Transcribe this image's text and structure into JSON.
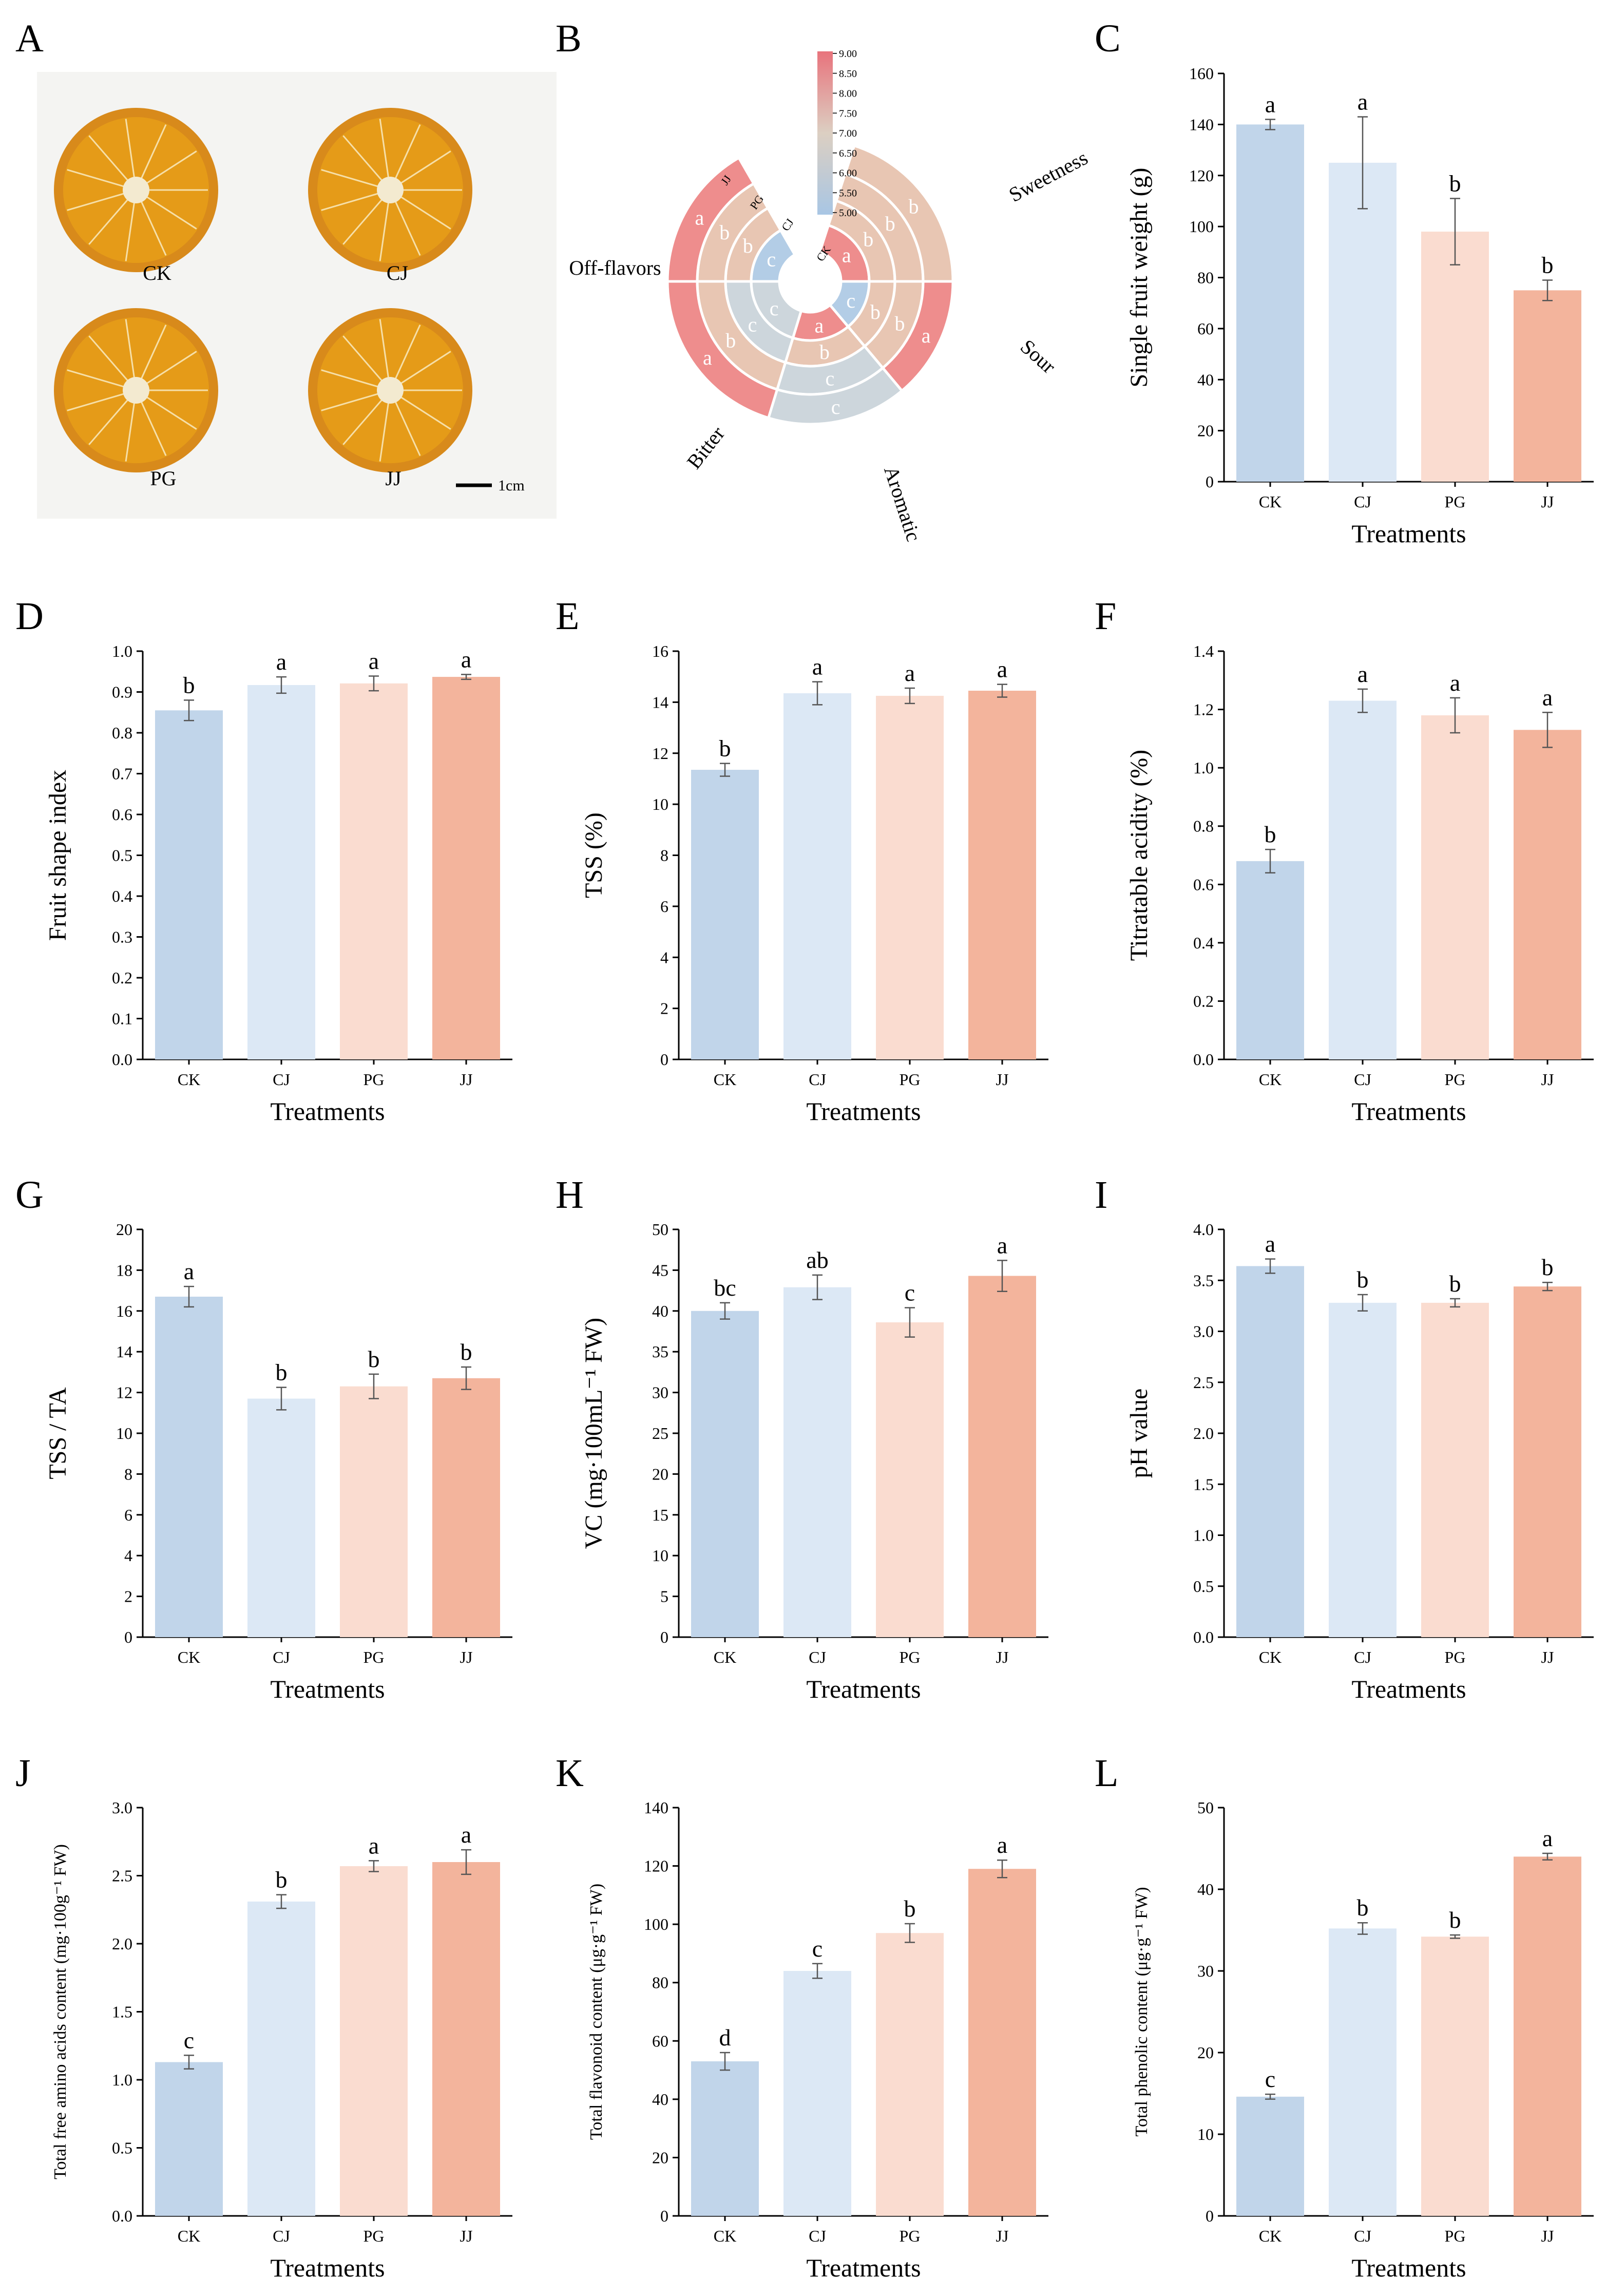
{
  "panel_letters": [
    "A",
    "B",
    "C",
    "D",
    "E",
    "F",
    "G",
    "H",
    "I",
    "J",
    "K",
    "L"
  ],
  "colors": {
    "CK": "#c1d5ea",
    "CJ": "#dce8f5",
    "PG": "#fadcd0",
    "JJ": "#f3b49c",
    "axis": "#000000",
    "errorbar": "#555555",
    "photo_bg": "#f4f4f2",
    "fruit_rind": "#d88a1b",
    "fruit_flesh": "#e59b18",
    "fruit_center": "#f3ead0",
    "radar_a": "#ee8d8d",
    "radar_b": "#e8c6b3",
    "radar_bc": "#d8ccb2",
    "radar_c": "#cdd6dc",
    "radar_c_blue": "#b3cde6",
    "colorbar_top": "#e8737c",
    "colorbar_mid": "#dccfc2",
    "colorbar_bottom": "#a8c6e4"
  },
  "panelA": {
    "labels": [
      "CK",
      "CJ",
      "PG",
      "JJ"
    ],
    "scale_label": "1cm"
  },
  "panelB": {
    "chart_data": {
      "type": "radial-heatmap",
      "rings_inner_to_outer": [
        "CK",
        "CJ",
        "PG",
        "JJ"
      ],
      "attributes": [
        "Sweetness",
        "Sour",
        "Aromatic",
        "Bitter",
        "Off-flavors"
      ],
      "letters": {
        "Sweetness": [
          "a",
          "b",
          "b",
          "b"
        ],
        "Sour": [
          "c",
          "b",
          "b",
          "a"
        ],
        "Aromatic": [
          "a",
          "b",
          "c",
          "c"
        ],
        "Bitter": [
          "c",
          "c",
          "b",
          "a"
        ],
        "Off-flavors": [
          "c",
          "b",
          "b",
          "a"
        ]
      },
      "colorbar_ticks": [
        "9.00",
        "8.50",
        "8.00",
        "7.50",
        "7.00",
        "6.50",
        "6.00",
        "5.50",
        "5.00"
      ]
    }
  },
  "chart_data": [
    {
      "panel": "C",
      "type": "bar",
      "categories": [
        "CK",
        "CJ",
        "PG",
        "JJ"
      ],
      "values": [
        140,
        125,
        98,
        75
      ],
      "errors": [
        2,
        18,
        13,
        4
      ],
      "letters": [
        "a",
        "a",
        "b",
        "b"
      ],
      "ylabel": "Single fruit weight (g)",
      "xlabel": "Treatments",
      "ylim": [
        0,
        160
      ],
      "ticks": [
        "0",
        "20",
        "40",
        "60",
        "80",
        "100",
        "120",
        "140",
        "160"
      ]
    },
    {
      "panel": "D",
      "type": "bar",
      "categories": [
        "CK",
        "CJ",
        "PG",
        "JJ"
      ],
      "values": [
        0.855,
        0.917,
        0.921,
        0.937
      ],
      "errors": [
        0.025,
        0.02,
        0.018,
        0.006
      ],
      "letters": [
        "b",
        "a",
        "a",
        "a"
      ],
      "ylabel": "Fruit shape index",
      "xlabel": "Treatments",
      "ylim": [
        0,
        1.0
      ],
      "ticks": [
        "0.0",
        "0.1",
        "0.2",
        "0.3",
        "0.4",
        "0.5",
        "0.6",
        "0.7",
        "0.8",
        "0.9",
        "1.0"
      ]
    },
    {
      "panel": "E",
      "type": "bar",
      "categories": [
        "CK",
        "CJ",
        "PG",
        "JJ"
      ],
      "values": [
        11.35,
        14.35,
        14.25,
        14.45
      ],
      "errors": [
        0.25,
        0.45,
        0.3,
        0.25
      ],
      "letters": [
        "b",
        "a",
        "a",
        "a"
      ],
      "ylabel": "TSS (%)",
      "xlabel": "Treatments",
      "ylim": [
        0,
        16
      ],
      "ticks": [
        "0",
        "2",
        "4",
        "6",
        "8",
        "10",
        "12",
        "14",
        "16"
      ]
    },
    {
      "panel": "F",
      "type": "bar",
      "categories": [
        "CK",
        "CJ",
        "PG",
        "JJ"
      ],
      "values": [
        0.68,
        1.23,
        1.18,
        1.13
      ],
      "errors": [
        0.04,
        0.04,
        0.06,
        0.06
      ],
      "letters": [
        "b",
        "a",
        "a",
        "a"
      ],
      "ylabel": "Titratable acidity (%)",
      "xlabel": "Treatments",
      "ylim": [
        0,
        1.4
      ],
      "ticks": [
        "0.0",
        "0.2",
        "0.4",
        "0.6",
        "0.8",
        "1.0",
        "1.2",
        "1.4"
      ]
    },
    {
      "panel": "G",
      "type": "bar",
      "categories": [
        "CK",
        "CJ",
        "PG",
        "JJ"
      ],
      "values": [
        16.7,
        11.7,
        12.3,
        12.7
      ],
      "errors": [
        0.5,
        0.55,
        0.6,
        0.55
      ],
      "letters": [
        "a",
        "b",
        "b",
        "b"
      ],
      "ylabel": "TSS / TA",
      "xlabel": "Treatments",
      "ylim": [
        0,
        20
      ],
      "ticks": [
        "0",
        "2",
        "4",
        "6",
        "8",
        "10",
        "12",
        "14",
        "16",
        "18",
        "20"
      ]
    },
    {
      "panel": "H",
      "type": "bar",
      "categories": [
        "CK",
        "CJ",
        "PG",
        "JJ"
      ],
      "values": [
        40,
        42.9,
        38.6,
        44.3
      ],
      "errors": [
        1.0,
        1.5,
        1.8,
        1.9
      ],
      "letters": [
        "bc",
        "ab",
        "c",
        "a"
      ],
      "ylabel": "VC (mg·100mL⁻¹ FW)",
      "xlabel": "Treatments",
      "ylim": [
        0,
        50
      ],
      "ticks": [
        "0",
        "5",
        "10",
        "15",
        "20",
        "25",
        "30",
        "35",
        "40",
        "45",
        "50"
      ]
    },
    {
      "panel": "I",
      "type": "bar",
      "categories": [
        "CK",
        "CJ",
        "PG",
        "JJ"
      ],
      "values": [
        3.64,
        3.28,
        3.28,
        3.44
      ],
      "errors": [
        0.07,
        0.08,
        0.04,
        0.04
      ],
      "letters": [
        "a",
        "b",
        "b",
        "b"
      ],
      "ylabel": "pH value",
      "xlabel": "Treatments",
      "ylim": [
        0,
        4.0
      ],
      "ticks": [
        "0.0",
        "0.5",
        "1.0",
        "1.5",
        "2.0",
        "2.5",
        "3.0",
        "3.5",
        "4.0"
      ]
    },
    {
      "panel": "J",
      "type": "bar",
      "categories": [
        "CK",
        "CJ",
        "PG",
        "JJ"
      ],
      "values": [
        1.13,
        2.31,
        2.57,
        2.6
      ],
      "errors": [
        0.05,
        0.05,
        0.04,
        0.09
      ],
      "letters": [
        "c",
        "b",
        "a",
        "a"
      ],
      "ylabel": "Total free amino acids content (mg·100g⁻¹ FW)",
      "xlabel": "Treatments",
      "ylim": [
        0,
        3.0
      ],
      "ticks": [
        "0.0",
        "0.5",
        "1.0",
        "1.5",
        "2.0",
        "2.5",
        "3.0"
      ]
    },
    {
      "panel": "K",
      "type": "bar",
      "categories": [
        "CK",
        "CJ",
        "PG",
        "JJ"
      ],
      "values": [
        53,
        84,
        97,
        119
      ],
      "errors": [
        3,
        2.5,
        3.2,
        3
      ],
      "letters": [
        "d",
        "c",
        "b",
        "a"
      ],
      "ylabel": "Total flavonoid content (μg·g⁻¹ FW)",
      "xlabel": "Treatments",
      "ylim": [
        0,
        140
      ],
      "ticks": [
        "0",
        "20",
        "40",
        "60",
        "80",
        "100",
        "120",
        "140"
      ]
    },
    {
      "panel": "L",
      "type": "bar",
      "categories": [
        "CK",
        "CJ",
        "PG",
        "JJ"
      ],
      "values": [
        14.6,
        35.2,
        34.2,
        44.0
      ],
      "errors": [
        0.3,
        0.7,
        0.2,
        0.4
      ],
      "letters": [
        "c",
        "b",
        "b",
        "a"
      ],
      "ylabel": "Total phenolic content (μg·g⁻¹ FW)",
      "xlabel": "Treatments",
      "ylim": [
        0,
        50
      ],
      "ticks": [
        "0",
        "10",
        "20",
        "30",
        "40",
        "50"
      ]
    }
  ]
}
